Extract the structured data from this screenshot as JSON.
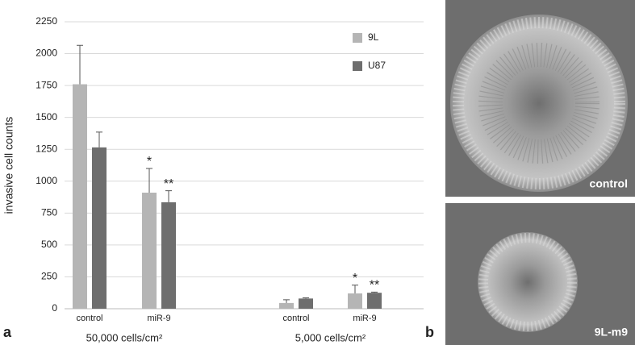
{
  "chart_data": {
    "type": "bar",
    "ylabel": "invasive cell counts",
    "categories": [
      "control",
      "miR-9",
      "control",
      "miR-9"
    ],
    "group_labels": [
      "50,000 cells/cm²",
      "5,000 cells/cm²"
    ],
    "series": [
      {
        "name": "9L",
        "color": "#b5b5b5",
        "values": [
          1760,
          910,
          45,
          120
        ],
        "errors": [
          305,
          190,
          25,
          65
        ],
        "markers": [
          null,
          "*",
          null,
          "*"
        ]
      },
      {
        "name": "U87",
        "color": "#6e6e6e",
        "values": [
          1265,
          835,
          80,
          125
        ],
        "errors": [
          120,
          90,
          5,
          5
        ],
        "markers": [
          null,
          "**",
          null,
          "**"
        ]
      }
    ],
    "ylim": [
      0,
      2250
    ],
    "yticks": [
      0,
      250,
      500,
      750,
      1000,
      1250,
      1500,
      1750,
      2000,
      2250
    ],
    "grid": true
  },
  "figure": {
    "panel_labels": [
      "a",
      "b"
    ],
    "images": [
      {
        "label": "control"
      },
      {
        "label": "9L-m9"
      }
    ]
  }
}
